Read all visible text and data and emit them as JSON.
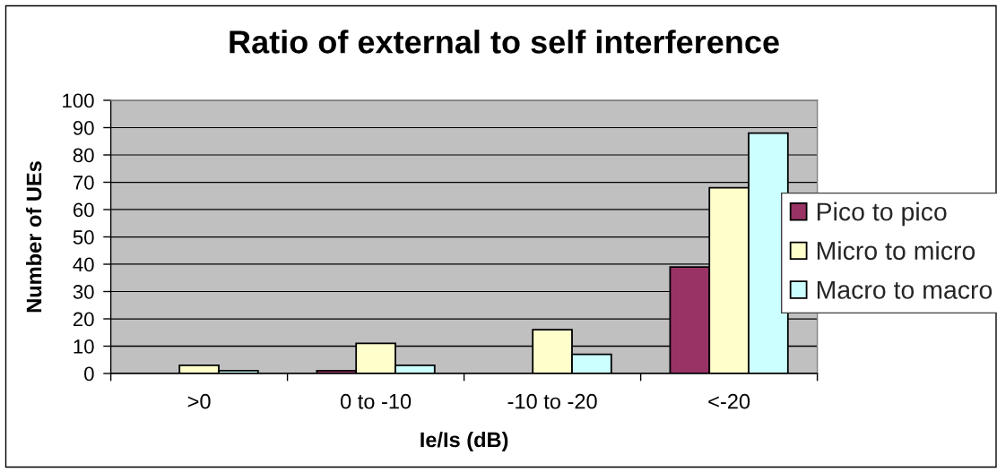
{
  "chart_data": {
    "type": "bar",
    "title": "Ratio of external to self interference",
    "xlabel": "Ie/Is (dB)",
    "ylabel": "Number of UEs",
    "categories": [
      ">0",
      "0 to -10",
      "-10 to -20",
      "<-20"
    ],
    "series": [
      {
        "name": "Pico to pico",
        "color": "#993366",
        "values": [
          0,
          1,
          0,
          39
        ]
      },
      {
        "name": "Micro to micro",
        "color": "#ffffcc",
        "values": [
          3,
          11,
          16,
          68
        ]
      },
      {
        "name": "Macro to macro",
        "color": "#ccffff",
        "values": [
          1,
          3,
          7,
          88
        ]
      }
    ],
    "ylim": [
      0,
      100
    ],
    "yticks": [
      0,
      10,
      20,
      30,
      40,
      50,
      60,
      70,
      80,
      90,
      100
    ],
    "grid": "y",
    "legend": "right"
  }
}
